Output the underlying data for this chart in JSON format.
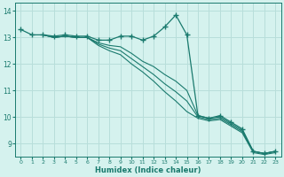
{
  "xlabel": "Humidex (Indice chaleur)",
  "bg_color": "#d5f2ee",
  "grid_color": "#b8deda",
  "line_color": "#1a7a6e",
  "xlim": [
    -0.5,
    23.5
  ],
  "ylim": [
    8.5,
    14.3
  ],
  "yticks": [
    9,
    10,
    11,
    12,
    13,
    14
  ],
  "xticks": [
    0,
    1,
    2,
    3,
    4,
    5,
    6,
    7,
    8,
    9,
    10,
    11,
    12,
    13,
    14,
    15,
    16,
    17,
    18,
    19,
    20,
    21,
    22,
    23
  ],
  "series_marked_x": [
    0,
    1,
    2,
    3,
    4,
    5,
    6,
    7,
    8,
    9,
    10,
    11,
    12,
    13,
    14,
    15,
    16,
    17,
    18,
    19,
    20,
    21,
    22,
    23
  ],
  "series_marked_y": [
    13.3,
    13.1,
    13.1,
    13.05,
    13.1,
    13.05,
    13.05,
    12.9,
    12.9,
    13.05,
    13.05,
    12.9,
    13.05,
    13.4,
    13.85,
    13.1,
    10.05,
    9.95,
    10.05,
    9.8,
    9.55,
    8.7,
    8.62,
    8.7
  ],
  "diag1_x": [
    2,
    3,
    4,
    5,
    6,
    7,
    8,
    9,
    10,
    11,
    12,
    13,
    14,
    15,
    16,
    17,
    18,
    19,
    20,
    21,
    22,
    23
  ],
  "diag1_y": [
    13.1,
    13.0,
    13.05,
    13.0,
    13.0,
    12.8,
    12.7,
    12.65,
    12.4,
    12.1,
    11.9,
    11.6,
    11.35,
    11.0,
    10.05,
    9.95,
    10.0,
    9.75,
    9.5,
    8.7,
    8.62,
    8.7
  ],
  "diag2_x": [
    2,
    3,
    4,
    5,
    6,
    7,
    8,
    9,
    10,
    11,
    12,
    13,
    14,
    15,
    16,
    17,
    18,
    19,
    20,
    21,
    22,
    23
  ],
  "diag2_y": [
    13.1,
    13.0,
    13.05,
    13.0,
    13.0,
    12.75,
    12.6,
    12.5,
    12.2,
    11.9,
    11.6,
    11.25,
    10.95,
    10.6,
    10.0,
    9.9,
    9.95,
    9.7,
    9.45,
    8.7,
    8.62,
    8.7
  ],
  "diag3_x": [
    2,
    3,
    4,
    5,
    6,
    7,
    8,
    9,
    10,
    11,
    12,
    13,
    14,
    15,
    16,
    17,
    18,
    19,
    20,
    21,
    22,
    23
  ],
  "diag3_y": [
    13.1,
    13.0,
    13.05,
    13.0,
    13.0,
    12.7,
    12.5,
    12.35,
    12.0,
    11.7,
    11.35,
    10.95,
    10.6,
    10.2,
    9.95,
    9.85,
    9.9,
    9.65,
    9.4,
    8.65,
    8.58,
    8.65
  ]
}
